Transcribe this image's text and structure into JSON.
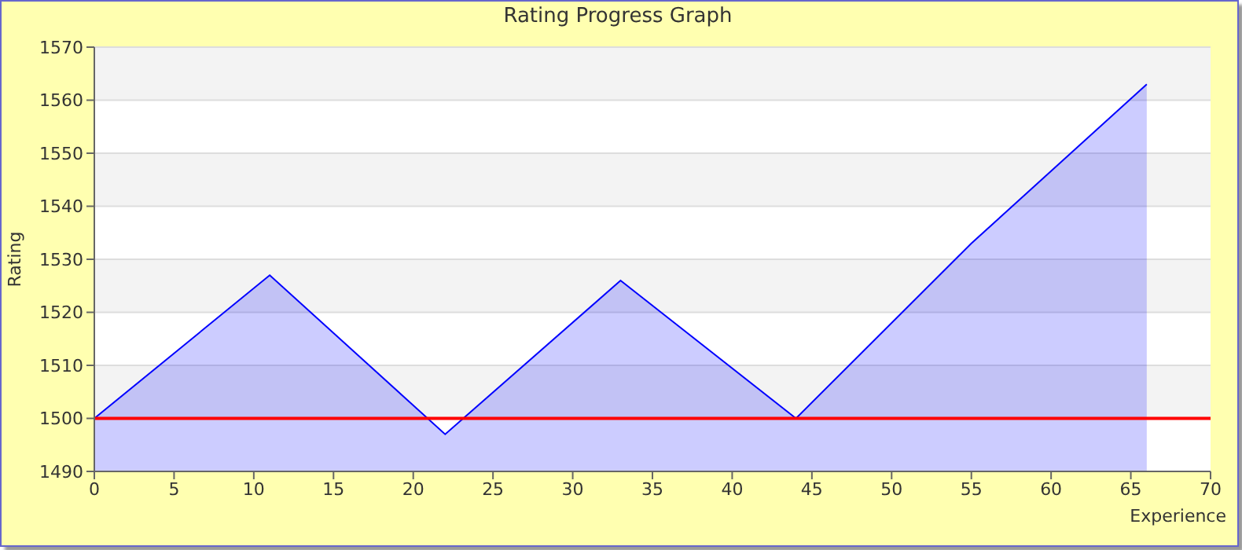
{
  "chart_data": {
    "type": "area",
    "title": "Rating Progress Graph",
    "xlabel": "Experience",
    "ylabel": "Rating",
    "x": [
      0,
      11,
      22,
      33,
      44,
      55,
      66
    ],
    "series": [
      {
        "color": "#0000ff",
        "values": [
          1500,
          1527,
          1497,
          1526,
          1500,
          1533,
          1563
        ]
      }
    ],
    "xlim": [
      0,
      70
    ],
    "xticks": [
      0,
      5,
      10,
      15,
      20,
      25,
      30,
      35,
      40,
      45,
      50,
      55,
      60,
      65,
      70
    ],
    "ylim": [
      1490,
      1570
    ],
    "yticks": [
      1490,
      1500,
      1510,
      1520,
      1530,
      1540,
      1550,
      1560,
      1570
    ],
    "ref_lines": [
      {
        "axis": "y",
        "value": 1500,
        "color": "#ff0000"
      }
    ],
    "grid": "y",
    "legend": false
  }
}
